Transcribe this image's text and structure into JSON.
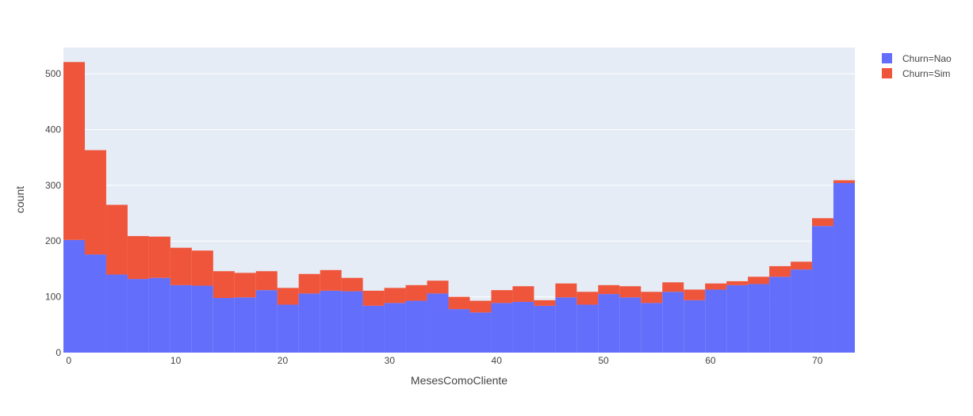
{
  "chart_data": {
    "type": "bar",
    "barmode": "stack",
    "xlabel": "MesesComoCliente",
    "ylabel": "count",
    "xlim": [
      -0.5,
      73.5
    ],
    "ylim": [
      0,
      547
    ],
    "bin_width": 2,
    "x_ticks": [
      0,
      10,
      20,
      30,
      40,
      50,
      60,
      70
    ],
    "y_ticks": [
      0,
      100,
      200,
      300,
      400,
      500
    ],
    "grid": true,
    "legend_placement": "top-right",
    "x": [
      0.5,
      2.5,
      4.5,
      6.5,
      8.5,
      10.5,
      12.5,
      14.5,
      16.5,
      18.5,
      20.5,
      22.5,
      24.5,
      26.5,
      28.5,
      30.5,
      32.5,
      34.5,
      36.5,
      38.5,
      40.5,
      42.5,
      44.5,
      46.5,
      48.5,
      50.5,
      52.5,
      54.5,
      56.5,
      58.5,
      60.5,
      62.5,
      64.5,
      66.5,
      68.5,
      70.5,
      72.5
    ],
    "series": [
      {
        "name": "Churn=Nao",
        "color": "#636efa",
        "values": [
          202,
          176,
          140,
          132,
          134,
          121,
          120,
          98,
          99,
          112,
          86,
          106,
          111,
          110,
          84,
          89,
          93,
          106,
          78,
          72,
          89,
          91,
          84,
          99,
          86,
          105,
          99,
          89,
          109,
          94,
          113,
          121,
          123,
          136,
          149,
          227,
          304
        ]
      },
      {
        "name": "Churn=Sim",
        "color": "#ef553b",
        "values": [
          319,
          187,
          125,
          77,
          74,
          67,
          63,
          48,
          44,
          34,
          30,
          35,
          37,
          24,
          27,
          27,
          28,
          23,
          22,
          21,
          23,
          28,
          10,
          25,
          23,
          16,
          20,
          20,
          17,
          19,
          11,
          7,
          13,
          19,
          14,
          14,
          5
        ]
      }
    ]
  }
}
